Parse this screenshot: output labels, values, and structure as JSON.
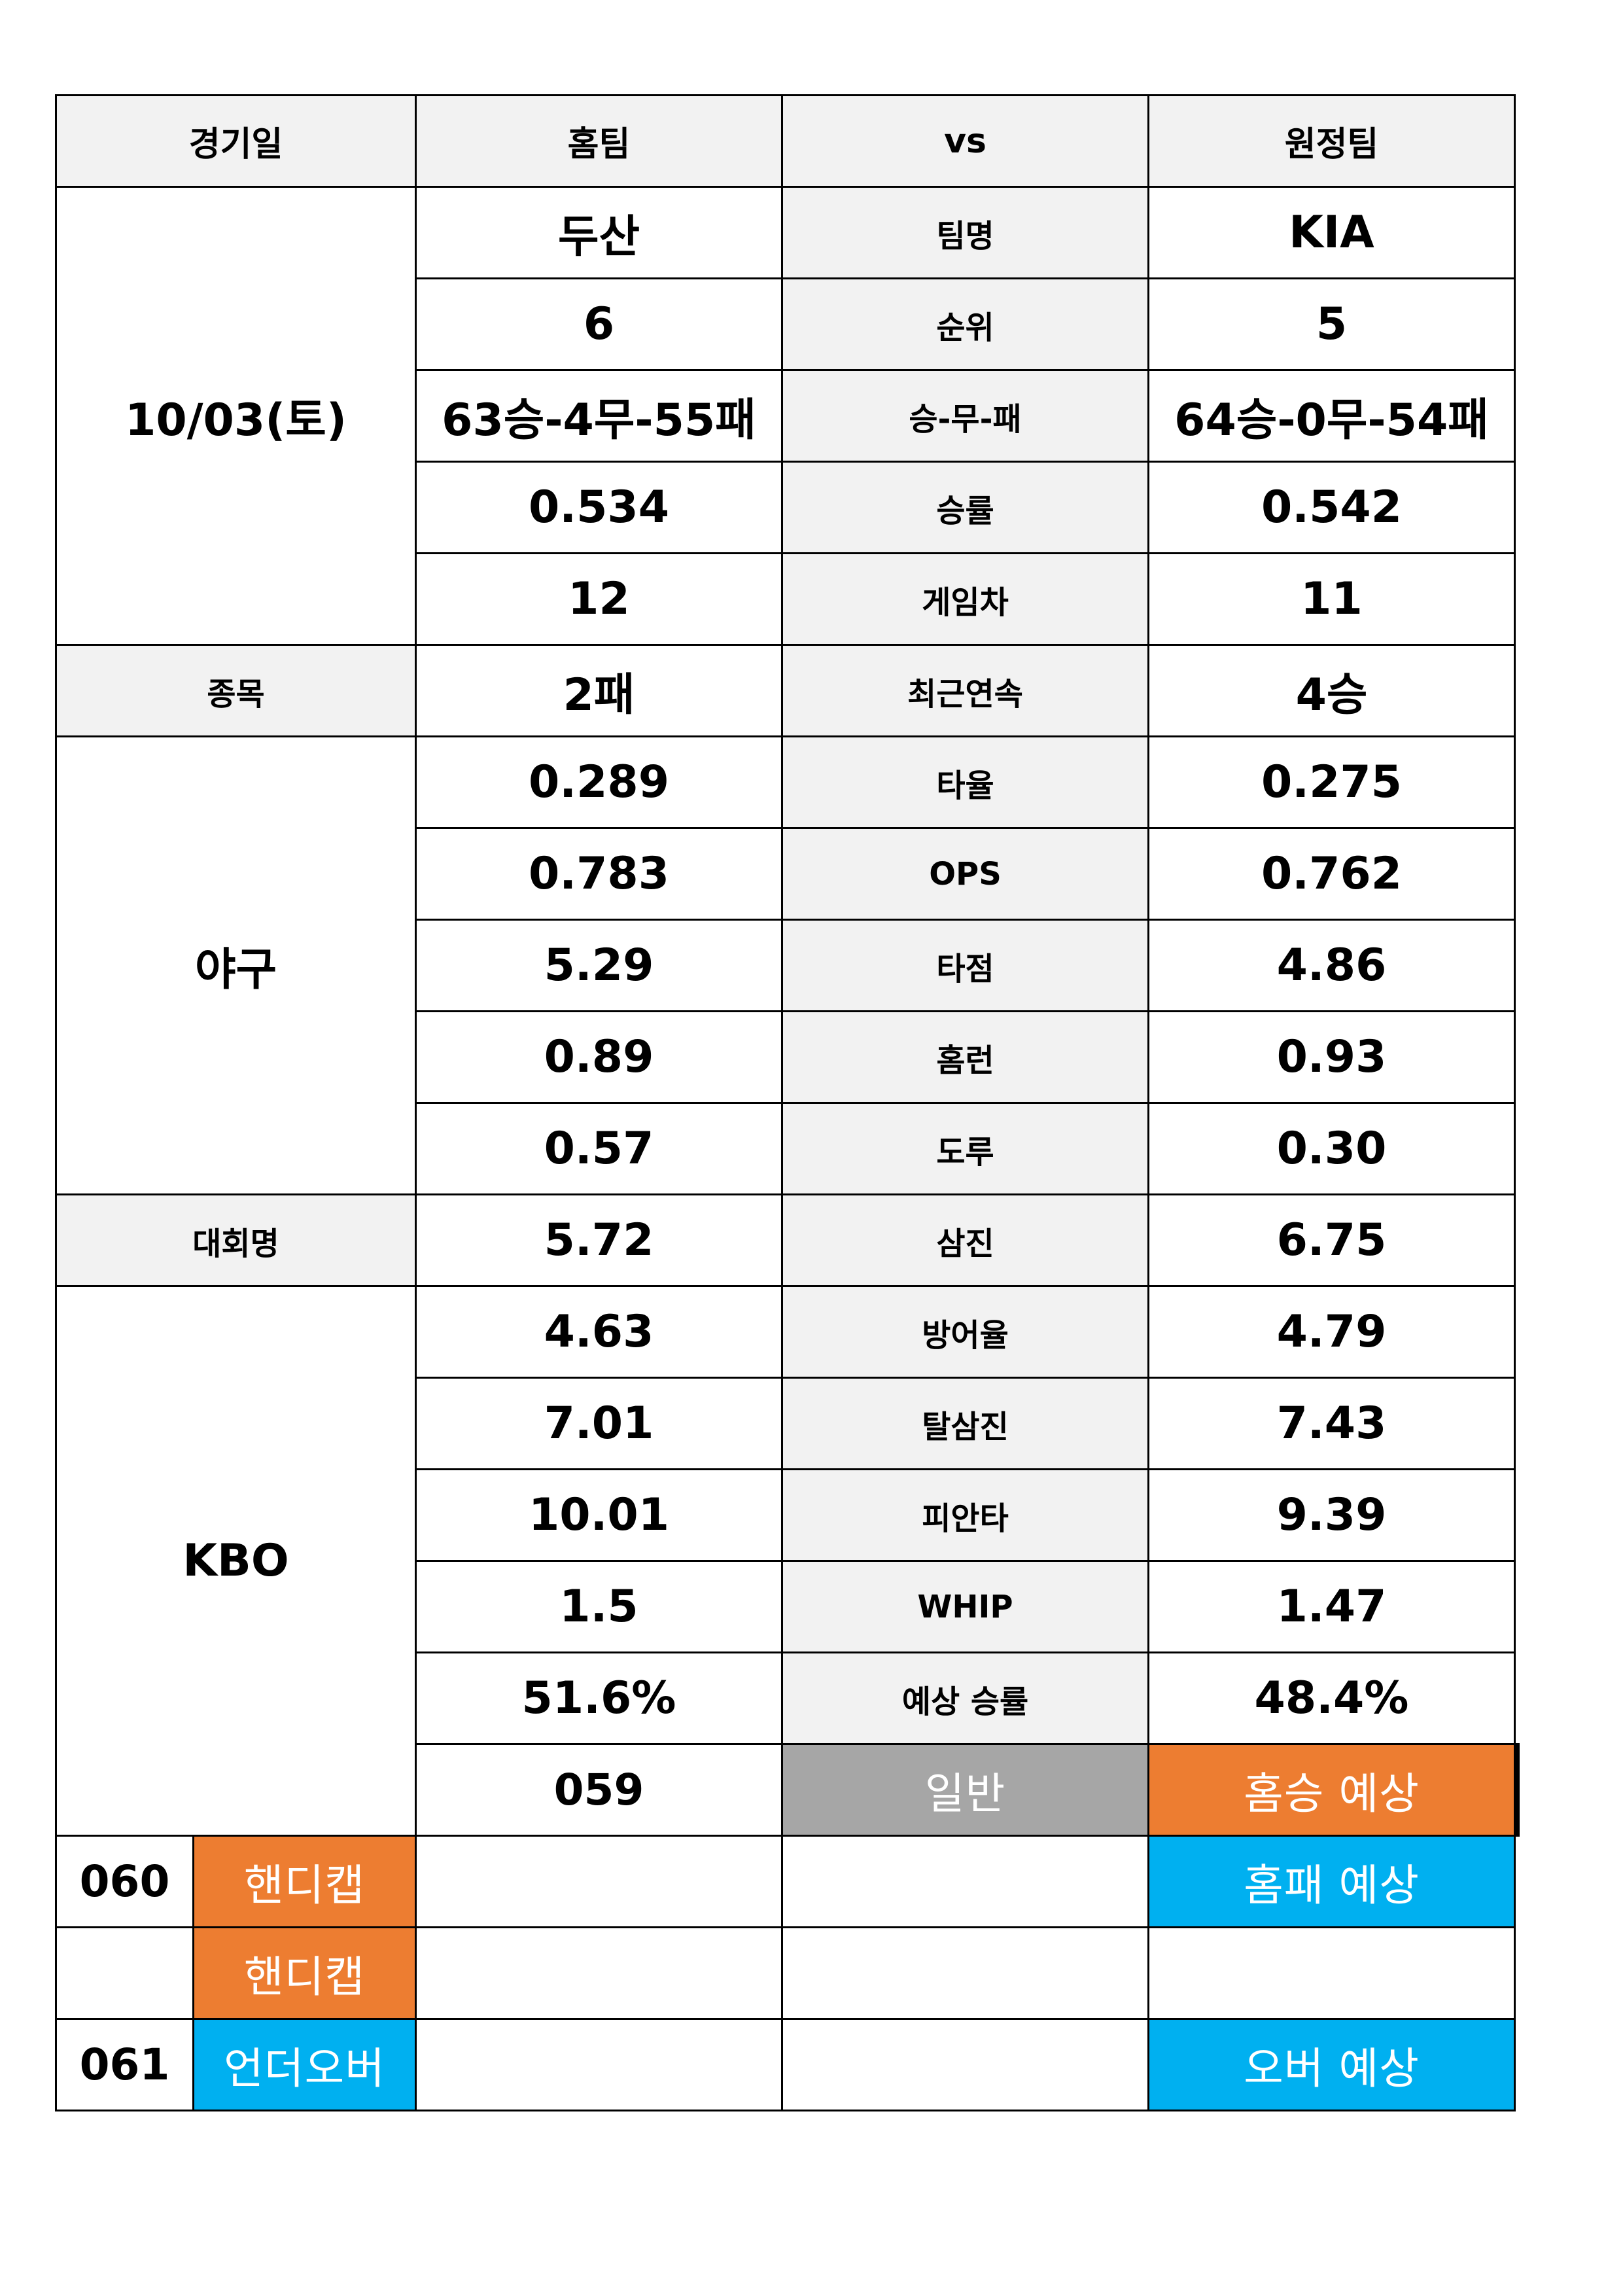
{
  "header": {
    "date_label": "경기일",
    "home_label": "홈팀",
    "vs_label": "vs",
    "away_label": "원정팀"
  },
  "match": {
    "date": "10/03(토)",
    "sport_label": "종목",
    "sport": "야구",
    "league_label": "대회명",
    "league": "KBO"
  },
  "stats": [
    {
      "label": "팀명",
      "home": "두산",
      "away": "KIA"
    },
    {
      "label": "순위",
      "home": "6",
      "away": "5"
    },
    {
      "label": "승-무-패",
      "home": "63승-4무-55패",
      "away": "64승-0무-54패"
    },
    {
      "label": "승률",
      "home": "0.534",
      "away": "0.542"
    },
    {
      "label": "게임차",
      "home": "12",
      "away": "11"
    },
    {
      "label": "최근연속",
      "home": "2패",
      "away": "4승"
    },
    {
      "label": "타율",
      "home": "0.289",
      "away": "0.275"
    },
    {
      "label": "OPS",
      "home": "0.783",
      "away": "0.762"
    },
    {
      "label": "타점",
      "home": "5.29",
      "away": "4.86"
    },
    {
      "label": "홈런",
      "home": "0.89",
      "away": "0.93"
    },
    {
      "label": "도루",
      "home": "0.57",
      "away": "0.30"
    },
    {
      "label": "삼진",
      "home": "5.72",
      "away": "6.75"
    },
    {
      "label": "방어율",
      "home": "4.63",
      "away": "4.79"
    },
    {
      "label": "탈삼진",
      "home": "7.01",
      "away": "7.43"
    },
    {
      "label": "피안타",
      "home": "10.01",
      "away": "9.39"
    },
    {
      "label": "WHIP",
      "home": "1.5",
      "away": "1.47"
    },
    {
      "label": "예상 승률",
      "home": "51.6%",
      "away": "48.4%"
    }
  ],
  "predictions": [
    {
      "no": "059",
      "type": "일반",
      "home_pick": "홈승 예상",
      "away_pick": ""
    },
    {
      "no": "060",
      "type": "핸디캡",
      "home_pick": "",
      "away_pick": "홈패 예상"
    },
    {
      "no": "",
      "type": "핸디캡",
      "home_pick": "",
      "away_pick": ""
    },
    {
      "no": "061",
      "type": "언더오버",
      "home_pick": "",
      "away_pick": "오버 예상"
    }
  ],
  "colors": {
    "header_bg": "#f2f2f2",
    "general": "#a6a6a6",
    "orange": "#ed7d31",
    "blue": "#00b0f0"
  }
}
